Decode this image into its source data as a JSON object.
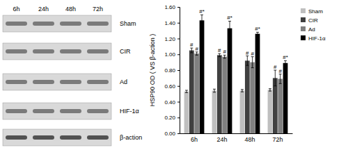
{
  "chart_data": {
    "type": "bar",
    "y_label": "HSP90 OD ( VS β-action )",
    "categories": [
      "6h",
      "24h",
      "48h",
      "72h"
    ],
    "ylim": [
      0,
      1.6
    ],
    "yticks": [
      {
        "value": 0,
        "label": "0.00"
      },
      {
        "value": 0.2,
        "label": "0.20"
      },
      {
        "value": 0.4,
        "label": "0.40"
      },
      {
        "value": 0.6,
        "label": "0.60"
      },
      {
        "value": 0.8,
        "label": "0.80"
      },
      {
        "value": 1.0,
        "label": "1.00"
      },
      {
        "value": 1.2,
        "label": "1.20"
      },
      {
        "value": 1.4,
        "label": "1.40"
      },
      {
        "value": 1.6,
        "label": "1.60"
      }
    ],
    "grid": false,
    "legend": "right",
    "series": [
      {
        "name": "Sham",
        "color": "#bfbfbf",
        "values": [
          0.53,
          0.54,
          0.54,
          0.55
        ],
        "errors": [
          0.015,
          0.02,
          0.015,
          0.015
        ]
      },
      {
        "name": "CIR",
        "color": "#404040",
        "values": [
          1.05,
          0.99,
          0.92,
          0.7
        ],
        "errors": [
          0.03,
          0.02,
          0.06,
          0.1
        ],
        "significance": [
          "#",
          "#",
          "#",
          "#"
        ]
      },
      {
        "name": "Ad",
        "color": "#808080",
        "values": [
          1.01,
          0.97,
          0.9,
          0.69
        ],
        "errors": [
          0.02,
          0.02,
          0.07,
          0.06
        ],
        "significance": [
          "#",
          "#",
          "#",
          "#"
        ]
      },
      {
        "name": "HIF-1α",
        "color": "#000000",
        "values": [
          1.43,
          1.33,
          1.26,
          0.89
        ],
        "errors": [
          0.07,
          0.09,
          0.02,
          0.03
        ],
        "significance": [
          "#*",
          "#*",
          "#*",
          "#*"
        ]
      }
    ]
  },
  "blot": {
    "lanes": [
      "6h",
      "24h",
      "48h",
      "72h"
    ],
    "rows": [
      "Sham",
      "CIR",
      "Ad",
      "HIF-1α",
      "β-action"
    ]
  }
}
